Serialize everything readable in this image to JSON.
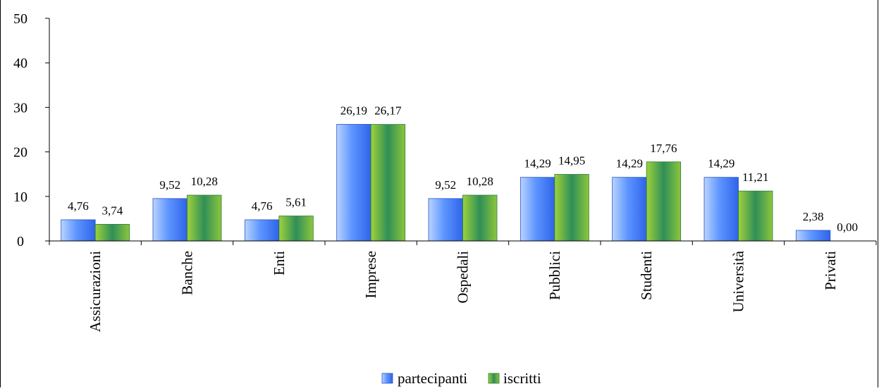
{
  "chart_data": {
    "type": "bar",
    "categories": [
      "Assicurazioni",
      "Banche",
      "Enti",
      "Imprese",
      "Ospedali",
      "Pubblici",
      "Studenti",
      "Università",
      "Privati"
    ],
    "series": [
      {
        "name": "partecipanti",
        "values": [
          4.76,
          9.52,
          4.76,
          26.19,
          9.52,
          14.29,
          14.29,
          14.29,
          2.38
        ],
        "labels": [
          "4,76",
          "9,52",
          "4,76",
          "26,19",
          "9,52",
          "14,29",
          "14,29",
          "14,29",
          "2,38"
        ],
        "color": "#6aa0ff"
      },
      {
        "name": "iscritti",
        "values": [
          3.74,
          10.28,
          5.61,
          26.17,
          10.28,
          14.95,
          17.76,
          11.21,
          0.0
        ],
        "labels": [
          "3,74",
          "10,28",
          "5,61",
          "26,17",
          "10,28",
          "14,95",
          "17,76",
          "11,21",
          "0,00"
        ],
        "color": "#3a9a48"
      }
    ],
    "yticks": [
      "0",
      "10",
      "20",
      "30",
      "40",
      "50"
    ],
    "ylim": [
      0,
      50
    ],
    "legend_position": "bottom",
    "grid": false
  }
}
